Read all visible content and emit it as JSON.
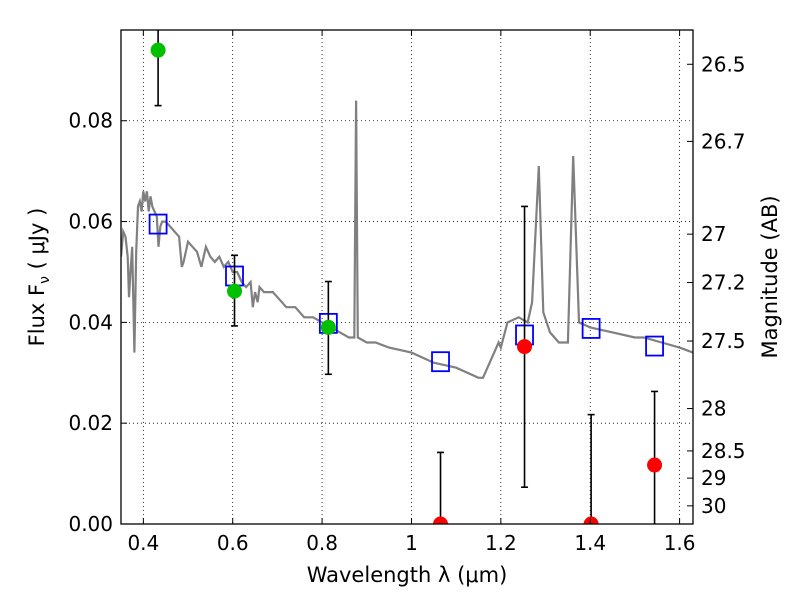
{
  "chart_data": {
    "type": "line",
    "xlabel": "Wavelength  λ (μm)",
    "ylabel": "Flux  F",
    "ylabel_subscript": "ν",
    "ylabel_unit": " ( μJy )",
    "y2label": "Magnitude (AB)",
    "xlim": [
      0.35,
      1.63
    ],
    "ylim": [
      0.0,
      0.098
    ],
    "grid": true,
    "x_ticks": [
      {
        "value": 0.4,
        "label": "0.4"
      },
      {
        "value": 0.6,
        "label": "0.6"
      },
      {
        "value": 0.8,
        "label": "0.8"
      },
      {
        "value": 1.0,
        "label": "1"
      },
      {
        "value": 1.2,
        "label": "1.2"
      },
      {
        "value": 1.4,
        "label": "1.4"
      },
      {
        "value": 1.6,
        "label": "1.6"
      }
    ],
    "y_ticks": [
      {
        "value": 0.0,
        "label": "0.00"
      },
      {
        "value": 0.02,
        "label": "0.02"
      },
      {
        "value": 0.04,
        "label": "0.04"
      },
      {
        "value": 0.06,
        "label": "0.06"
      },
      {
        "value": 0.08,
        "label": "0.08"
      }
    ],
    "y2_ticks": [
      {
        "flux": 0.0912,
        "label": "26.5"
      },
      {
        "flux": 0.0759,
        "label": "26.7"
      },
      {
        "flux": 0.0575,
        "label": "27"
      },
      {
        "flux": 0.0479,
        "label": "27.2"
      },
      {
        "flux": 0.0363,
        "label": "27.5"
      },
      {
        "flux": 0.0229,
        "label": "28"
      },
      {
        "flux": 0.0145,
        "label": "28.5"
      },
      {
        "flux": 0.0091,
        "label": "29"
      },
      {
        "flux": 0.0036,
        "label": "30"
      }
    ],
    "series": [
      {
        "role": "model_spectrum",
        "color": "#808080",
        "points": [
          [
            0.35,
            0.053
          ],
          [
            0.355,
            0.058
          ],
          [
            0.36,
            0.057
          ],
          [
            0.365,
            0.053
          ],
          [
            0.368,
            0.045
          ],
          [
            0.372,
            0.051
          ],
          [
            0.375,
            0.055
          ],
          [
            0.38,
            0.034
          ],
          [
            0.384,
            0.054
          ],
          [
            0.388,
            0.063
          ],
          [
            0.392,
            0.064
          ],
          [
            0.396,
            0.062
          ],
          [
            0.4,
            0.066
          ],
          [
            0.404,
            0.064
          ],
          [
            0.408,
            0.066
          ],
          [
            0.412,
            0.062
          ],
          [
            0.416,
            0.065
          ],
          [
            0.42,
            0.063
          ],
          [
            0.425,
            0.062
          ],
          [
            0.43,
            0.061
          ],
          [
            0.434,
            0.055
          ],
          [
            0.438,
            0.059
          ],
          [
            0.442,
            0.06
          ],
          [
            0.45,
            0.06
          ],
          [
            0.46,
            0.059
          ],
          [
            0.47,
            0.058
          ],
          [
            0.48,
            0.057
          ],
          [
            0.486,
            0.051
          ],
          [
            0.49,
            0.052
          ],
          [
            0.495,
            0.054
          ],
          [
            0.5,
            0.056
          ],
          [
            0.51,
            0.055
          ],
          [
            0.52,
            0.054
          ],
          [
            0.53,
            0.051
          ],
          [
            0.54,
            0.055
          ],
          [
            0.55,
            0.053
          ],
          [
            0.56,
            0.052
          ],
          [
            0.57,
            0.053
          ],
          [
            0.58,
            0.051
          ],
          [
            0.59,
            0.052
          ],
          [
            0.6,
            0.05
          ],
          [
            0.61,
            0.05
          ],
          [
            0.62,
            0.048
          ],
          [
            0.63,
            0.047
          ],
          [
            0.64,
            0.048
          ],
          [
            0.645,
            0.043
          ],
          [
            0.65,
            0.046
          ],
          [
            0.656,
            0.044
          ],
          [
            0.66,
            0.047
          ],
          [
            0.67,
            0.046
          ],
          [
            0.68,
            0.046
          ],
          [
            0.69,
            0.046
          ],
          [
            0.7,
            0.045
          ],
          [
            0.71,
            0.044
          ],
          [
            0.72,
            0.043
          ],
          [
            0.74,
            0.043
          ],
          [
            0.76,
            0.041
          ],
          [
            0.78,
            0.041
          ],
          [
            0.8,
            0.04
          ],
          [
            0.82,
            0.039
          ],
          [
            0.84,
            0.038
          ],
          [
            0.86,
            0.037
          ],
          [
            0.872,
            0.037
          ],
          [
            0.876,
            0.084
          ],
          [
            0.88,
            0.037
          ],
          [
            0.9,
            0.036
          ],
          [
            0.92,
            0.036
          ],
          [
            0.95,
            0.035
          ],
          [
            1.0,
            0.034
          ],
          [
            1.05,
            0.032
          ],
          [
            1.1,
            0.031
          ],
          [
            1.15,
            0.029
          ],
          [
            1.16,
            0.029
          ],
          [
            1.18,
            0.033
          ],
          [
            1.195,
            0.036
          ],
          [
            1.2,
            0.035
          ],
          [
            1.215,
            0.04
          ],
          [
            1.24,
            0.041
          ],
          [
            1.26,
            0.04
          ],
          [
            1.27,
            0.044
          ],
          [
            1.285,
            0.071
          ],
          [
            1.295,
            0.042
          ],
          [
            1.31,
            0.038
          ],
          [
            1.33,
            0.036
          ],
          [
            1.35,
            0.036
          ],
          [
            1.362,
            0.073
          ],
          [
            1.375,
            0.04
          ],
          [
            1.4,
            0.039
          ],
          [
            1.45,
            0.038
          ],
          [
            1.5,
            0.037
          ],
          [
            1.52,
            0.037
          ],
          [
            1.56,
            0.036
          ],
          [
            1.6,
            0.035
          ],
          [
            1.63,
            0.034
          ]
        ]
      },
      {
        "role": "model_photometry",
        "marker": "open-square",
        "color": "#0000ff",
        "points": [
          [
            0.433,
            0.0595
          ],
          [
            0.604,
            0.0492
          ],
          [
            0.814,
            0.0398
          ],
          [
            1.065,
            0.0322
          ],
          [
            1.253,
            0.0375
          ],
          [
            1.402,
            0.0388
          ],
          [
            1.544,
            0.0353
          ]
        ]
      },
      {
        "role": "detections",
        "marker": "filled-circle",
        "color": "#00c000",
        "points": [
          {
            "x": 0.433,
            "y": 0.094,
            "lo": 0.083,
            "hi": 0.105
          },
          {
            "x": 0.604,
            "y": 0.0462,
            "lo": 0.0393,
            "hi": 0.0533
          },
          {
            "x": 0.814,
            "y": 0.039,
            "lo": 0.0297,
            "hi": 0.0481
          }
        ]
      },
      {
        "role": "non_detections",
        "marker": "filled-circle",
        "color": "#ff0000",
        "points": [
          {
            "x": 1.065,
            "y": 0.0,
            "lo": 0.0,
            "hi": 0.0142
          },
          {
            "x": 1.253,
            "y": 0.0352,
            "lo": 0.0073,
            "hi": 0.063
          },
          {
            "x": 1.402,
            "y": 0.0,
            "lo": 0.0,
            "hi": 0.0217
          },
          {
            "x": 1.544,
            "y": 0.0117,
            "lo": 0.0,
            "hi": 0.0263
          }
        ]
      }
    ]
  }
}
